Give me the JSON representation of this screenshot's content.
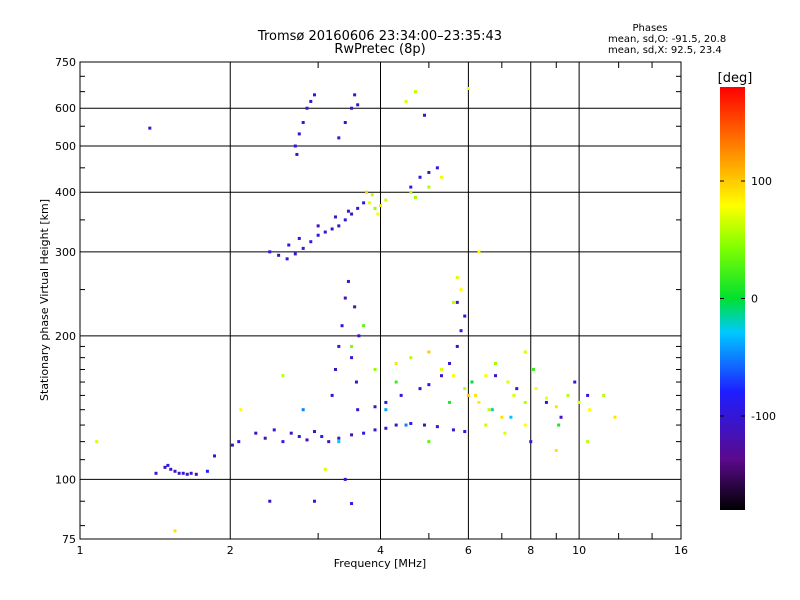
{
  "chart_data": {
    "type": "scatter",
    "title": "Tromsø 20160606 23:34:00–23:35:43",
    "subtitle": "RwPretec (8p)",
    "xlabel": "Frequency [MHz]",
    "ylabel": "Stationary phase Virtual Height [km]",
    "x_scale": "log",
    "y_scale": "log",
    "xlim": [
      1,
      16
    ],
    "ylim": [
      75,
      750
    ],
    "x_ticks": [
      1,
      2,
      4,
      6,
      8,
      10,
      16
    ],
    "x_minor_ticks": [
      3,
      5,
      7,
      9,
      12,
      14
    ],
    "y_ticks": [
      75,
      100,
      200,
      300,
      400,
      500,
      600,
      750
    ],
    "grid": true,
    "legend": {
      "heading": "Phases",
      "lines": [
        "mean, sd,O: -91.5, 20.8",
        "mean, sd,X:  92.5, 23.4"
      ],
      "placement": "top-right"
    },
    "colorbar": {
      "label": "[deg]",
      "range": [
        -180,
        180
      ],
      "ticks": [
        100,
        0,
        -100
      ],
      "colormap": "rainbow"
    },
    "series": [
      {
        "points": [
          [
            1.48,
            106,
            -110
          ],
          [
            1.52,
            105,
            -100
          ],
          [
            1.55,
            104,
            -120
          ],
          [
            1.58,
            103,
            -105
          ],
          [
            1.61,
            103,
            -95
          ],
          [
            1.64,
            102.5,
            -110
          ],
          [
            1.67,
            103,
            -100
          ],
          [
            1.71,
            102.5,
            -115
          ],
          [
            1.5,
            107,
            -90
          ],
          [
            1.42,
            103,
            -100
          ],
          [
            1.8,
            104,
            -80
          ],
          [
            1.86,
            112,
            -100
          ],
          [
            2.02,
            118,
            -110
          ],
          [
            2.08,
            120,
            -90
          ],
          [
            2.25,
            125,
            -110
          ],
          [
            2.35,
            122,
            -120
          ],
          [
            2.45,
            127,
            -100
          ],
          [
            2.55,
            120,
            -90
          ],
          [
            2.65,
            125,
            -110
          ],
          [
            2.75,
            123,
            -95
          ],
          [
            2.85,
            121,
            -120
          ],
          [
            2.95,
            126,
            -100
          ],
          [
            3.05,
            123,
            -80
          ],
          [
            3.15,
            120,
            -110
          ],
          [
            3.3,
            122,
            -100
          ],
          [
            3.5,
            124,
            -110
          ],
          [
            3.7,
            125,
            -95
          ],
          [
            3.9,
            127,
            -105
          ],
          [
            4.1,
            128,
            -100
          ],
          [
            4.3,
            130,
            -110
          ],
          [
            4.6,
            131,
            -95
          ],
          [
            4.9,
            130,
            -120
          ],
          [
            5.2,
            129,
            -100
          ],
          [
            5.6,
            127,
            -105
          ],
          [
            5.9,
            126,
            -90
          ],
          [
            3.6,
            140,
            -100
          ],
          [
            3.9,
            142,
            -110
          ],
          [
            4.1,
            145,
            -95
          ],
          [
            4.4,
            150,
            -100
          ],
          [
            4.8,
            155,
            -110
          ],
          [
            5.0,
            158,
            -90
          ],
          [
            5.3,
            165,
            -105
          ],
          [
            5.5,
            175,
            -100
          ],
          [
            5.7,
            190,
            -110
          ],
          [
            5.8,
            205,
            -95
          ],
          [
            5.9,
            220,
            -100
          ],
          [
            5.7,
            235,
            -110
          ],
          [
            3.2,
            150,
            -100
          ],
          [
            3.25,
            170,
            -110
          ],
          [
            3.3,
            190,
            -95
          ],
          [
            3.35,
            210,
            -100
          ],
          [
            3.4,
            240,
            -120
          ],
          [
            3.45,
            260,
            -105
          ],
          [
            3.55,
            230,
            -110
          ],
          [
            3.62,
            200,
            -100
          ],
          [
            3.5,
            180,
            -95
          ],
          [
            3.58,
            160,
            -110
          ],
          [
            2.4,
            300,
            -100
          ],
          [
            2.5,
            295,
            -110
          ],
          [
            2.6,
            290,
            -90
          ],
          [
            2.7,
            297,
            -100
          ],
          [
            2.8,
            305,
            -110
          ],
          [
            2.9,
            315,
            -95
          ],
          [
            3.0,
            325,
            -100
          ],
          [
            3.1,
            330,
            -110
          ],
          [
            3.2,
            335,
            -100
          ],
          [
            3.3,
            340,
            -105
          ],
          [
            3.4,
            350,
            -95
          ],
          [
            3.5,
            360,
            -110
          ],
          [
            3.6,
            370,
            -100
          ],
          [
            3.7,
            380,
            -90
          ],
          [
            2.62,
            310,
            -105
          ],
          [
            2.75,
            320,
            -100
          ],
          [
            3.0,
            340,
            -115
          ],
          [
            3.25,
            355,
            -100
          ],
          [
            3.45,
            365,
            -110
          ],
          [
            2.7,
            500,
            -100
          ],
          [
            2.75,
            530,
            -110
          ],
          [
            2.8,
            560,
            -95
          ],
          [
            2.85,
            600,
            -100
          ],
          [
            2.9,
            620,
            -110
          ],
          [
            2.95,
            640,
            -90
          ],
          [
            2.72,
            480,
            -105
          ],
          [
            3.3,
            520,
            -100
          ],
          [
            3.4,
            560,
            -110
          ],
          [
            3.5,
            600,
            -95
          ],
          [
            3.55,
            640,
            -100
          ],
          [
            3.6,
            610,
            -110
          ],
          [
            3.4,
            100,
            -100
          ],
          [
            2.4,
            90,
            -110
          ],
          [
            2.95,
            90,
            -100
          ],
          [
            3.5,
            89,
            -95
          ],
          [
            1.38,
            545,
            -100
          ],
          [
            4.9,
            580,
            -110
          ],
          [
            4.6,
            410,
            -100
          ],
          [
            4.8,
            430,
            -95
          ],
          [
            5.0,
            440,
            -110
          ],
          [
            5.2,
            450,
            -100
          ],
          [
            6.8,
            165,
            -110
          ],
          [
            7.5,
            155,
            -100
          ],
          [
            9.2,
            135,
            -110
          ],
          [
            9.8,
            160,
            -100
          ],
          [
            10.4,
            150,
            -95
          ],
          [
            8.6,
            145,
            -110
          ],
          [
            8.0,
            120,
            -100
          ]
        ]
      },
      {
        "points": [
          [
            3.8,
            380,
            70
          ],
          [
            3.85,
            395,
            60
          ],
          [
            3.9,
            370,
            50
          ],
          [
            3.95,
            360,
            80
          ],
          [
            4.0,
            375,
            90
          ],
          [
            3.75,
            400,
            100
          ],
          [
            4.1,
            385,
            65
          ],
          [
            4.6,
            400,
            60
          ],
          [
            5.0,
            410,
            55
          ],
          [
            5.3,
            430,
            75
          ],
          [
            4.7,
            390,
            50
          ],
          [
            4.5,
            620,
            70
          ],
          [
            4.7,
            650,
            60
          ],
          [
            6.0,
            660,
            80
          ],
          [
            4.3,
            175,
            90
          ],
          [
            4.6,
            180,
            60
          ],
          [
            5.0,
            185,
            100
          ],
          [
            5.3,
            170,
            70
          ],
          [
            5.6,
            165,
            80
          ],
          [
            5.9,
            155,
            60
          ],
          [
            6.2,
            150,
            90
          ],
          [
            6.5,
            165,
            80
          ],
          [
            6.8,
            175,
            50
          ],
          [
            7.2,
            160,
            70
          ],
          [
            6.0,
            150,
            100
          ],
          [
            6.3,
            145,
            85
          ],
          [
            6.6,
            140,
            60
          ],
          [
            7.0,
            135,
            90
          ],
          [
            7.4,
            150,
            70
          ],
          [
            7.8,
            145,
            60
          ],
          [
            8.2,
            155,
            80
          ],
          [
            8.6,
            148,
            75
          ],
          [
            9.0,
            142,
            90
          ],
          [
            9.5,
            150,
            60
          ],
          [
            10.0,
            145,
            70
          ],
          [
            10.5,
            140,
            80
          ],
          [
            11.2,
            150,
            60
          ],
          [
            11.8,
            135,
            90
          ],
          [
            5.6,
            235,
            60
          ],
          [
            5.8,
            250,
            80
          ],
          [
            5.7,
            265,
            70
          ],
          [
            6.5,
            130,
            65
          ],
          [
            7.1,
            125,
            70
          ],
          [
            7.8,
            130,
            80
          ],
          [
            9.0,
            115,
            90
          ],
          [
            10.4,
            120,
            60
          ],
          [
            3.1,
            105,
            70
          ],
          [
            2.1,
            140,
            80
          ],
          [
            1.08,
            120,
            70
          ],
          [
            1.55,
            78,
            90
          ],
          [
            2.55,
            165,
            60
          ],
          [
            6.3,
            300,
            80
          ],
          [
            7.8,
            185,
            70
          ],
          [
            3.5,
            190,
            40
          ],
          [
            3.7,
            210,
            30
          ],
          [
            3.9,
            170,
            50
          ],
          [
            4.3,
            160,
            20
          ],
          [
            5.0,
            120,
            30
          ],
          [
            5.5,
            145,
            10
          ],
          [
            6.1,
            160,
            0
          ],
          [
            6.7,
            140,
            -20
          ],
          [
            7.3,
            135,
            -30
          ],
          [
            8.1,
            170,
            20
          ],
          [
            9.1,
            130,
            10
          ],
          [
            4.1,
            140,
            -40
          ],
          [
            4.5,
            130,
            -50
          ],
          [
            3.3,
            120,
            -30
          ],
          [
            2.8,
            140,
            -50
          ]
        ]
      }
    ]
  }
}
